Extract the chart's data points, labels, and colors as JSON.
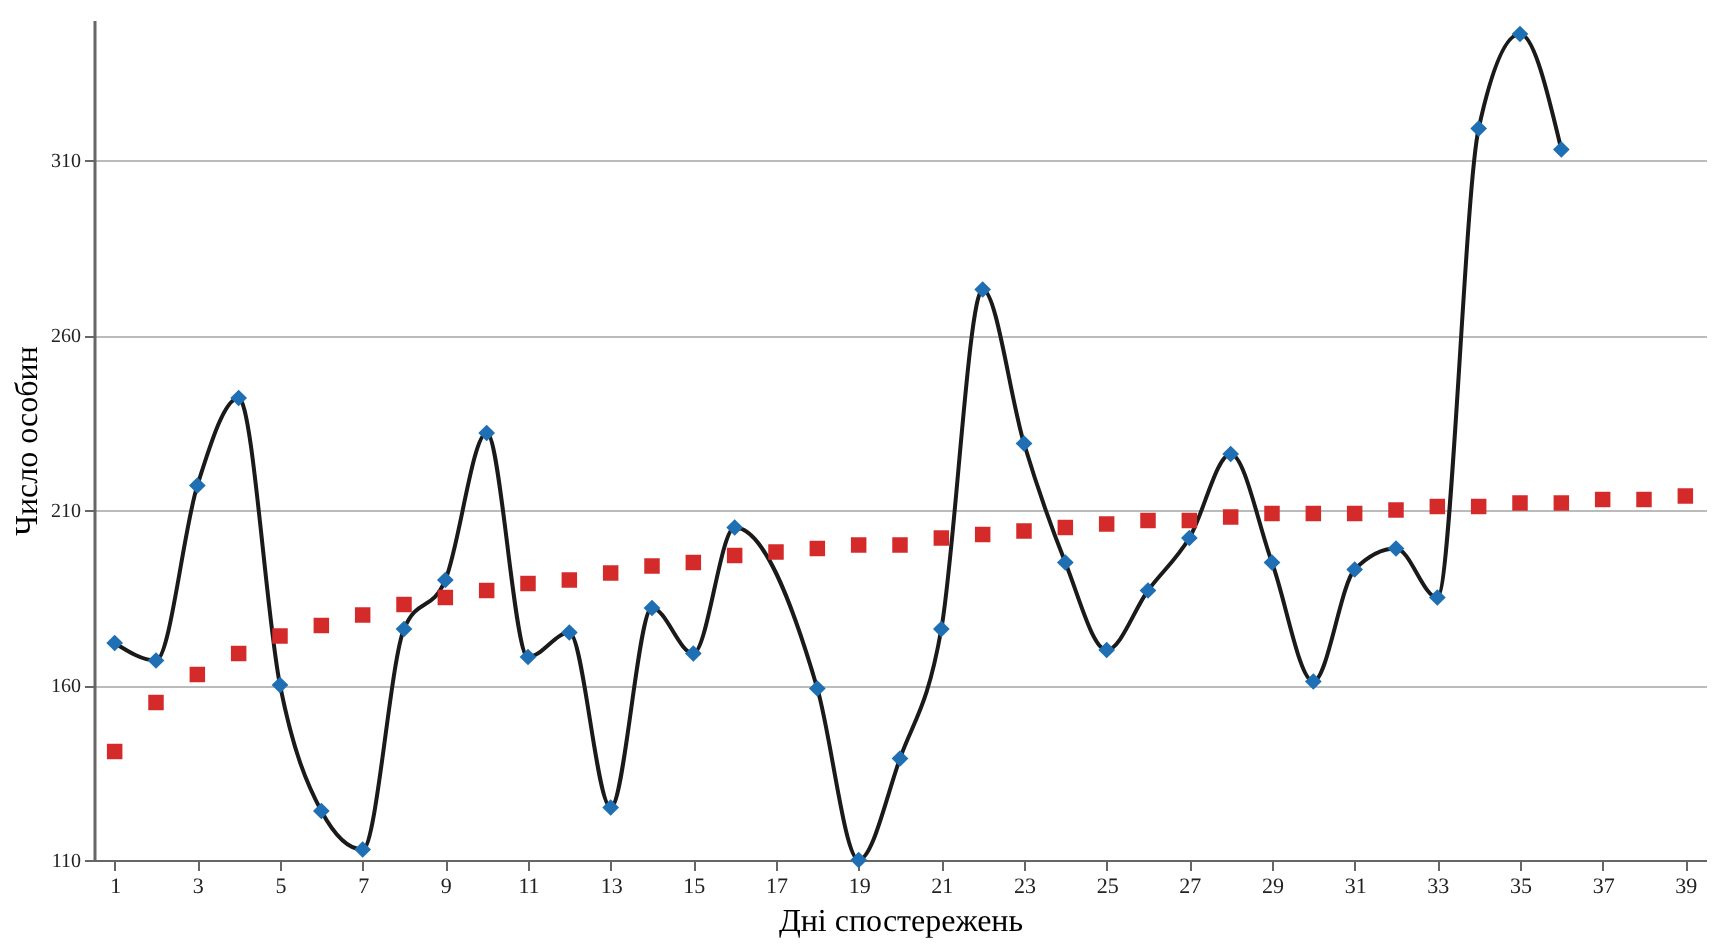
{
  "chart_data": {
    "type": "line",
    "xlabel": "Дні спостережень",
    "ylabel": "Число особин",
    "xlim": [
      0.5,
      39.5
    ],
    "xticks": [
      1,
      3,
      5,
      7,
      9,
      11,
      13,
      15,
      17,
      19,
      21,
      23,
      25,
      27,
      29,
      31,
      33,
      35,
      37,
      39
    ],
    "ylim": [
      110,
      350
    ],
    "yticks": [
      110,
      160,
      210,
      260,
      310
    ],
    "grid": "y",
    "line_style": "solid",
    "series": [
      {
        "marker": "diamond",
        "color": "#1f6fb4",
        "x": [
          1,
          2,
          3,
          4,
          5,
          6,
          7,
          8,
          9,
          10,
          11,
          12,
          13,
          14,
          15,
          16,
          18,
          19,
          20,
          21,
          22,
          23,
          24,
          25,
          26,
          27,
          28,
          29,
          30,
          31,
          32,
          33,
          34,
          35,
          36
        ],
        "values": [
          172,
          167,
          217,
          242,
          160,
          124,
          113,
          176,
          190,
          232,
          168,
          175,
          125,
          182,
          169,
          205,
          159,
          110,
          139,
          176,
          273,
          229,
          195,
          170,
          187,
          202,
          226,
          195,
          161,
          193,
          199,
          185,
          319,
          346,
          313
        ]
      },
      {
        "type": "scatter",
        "marker": "square",
        "color": "#d42a2a",
        "x": [
          1,
          2,
          3,
          4,
          5,
          6,
          7,
          8,
          9,
          10,
          11,
          12,
          13,
          14,
          15,
          16,
          17,
          18,
          19,
          20,
          21,
          22,
          23,
          24,
          25,
          26,
          27,
          28,
          29,
          30,
          31,
          32,
          33,
          34,
          35,
          36,
          37,
          38,
          39
        ],
        "values": [
          141,
          155,
          163,
          169,
          174,
          177,
          180,
          183,
          185,
          187,
          189,
          190,
          192,
          194,
          195,
          197,
          198,
          199,
          200,
          200,
          202,
          203,
          204,
          205,
          206,
          207,
          207,
          208,
          209,
          209,
          209,
          210,
          211,
          211,
          212,
          212,
          213,
          213,
          214
        ]
      }
    ]
  }
}
